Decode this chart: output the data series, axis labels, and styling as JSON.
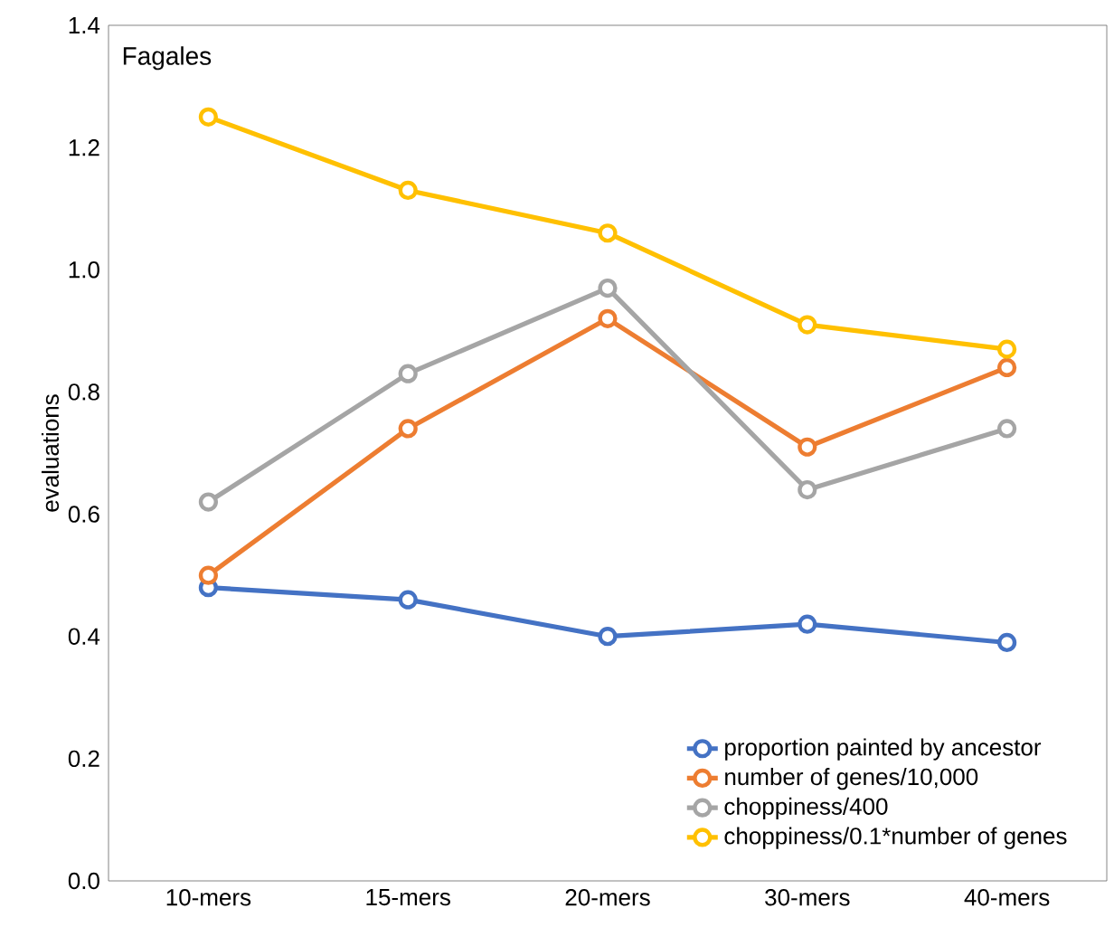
{
  "chart_data": {
    "type": "line",
    "title": "Fagales",
    "ylabel": "evaluations",
    "categories": [
      "10-mers",
      "15-mers",
      "20-mers",
      "30-mers",
      "40-mers"
    ],
    "series": [
      {
        "name": "proportion painted by ancestor",
        "color": "#4472c4",
        "values": [
          0.48,
          0.46,
          0.4,
          0.42,
          0.39
        ]
      },
      {
        "name": "number of genes/10,000",
        "color": "#ed7d31",
        "values": [
          0.5,
          0.74,
          0.92,
          0.71,
          0.84
        ]
      },
      {
        "name": "choppiness/400",
        "color": "#a5a5a5",
        "values": [
          0.62,
          0.83,
          0.97,
          0.64,
          0.74
        ]
      },
      {
        "name": "choppiness/0.1*number of genes",
        "color": "#ffc000",
        "values": [
          1.25,
          1.13,
          1.06,
          0.91,
          0.87
        ]
      }
    ],
    "ylim": [
      0,
      1.4
    ],
    "yticks": [
      {
        "value": 0,
        "label": "0.0"
      },
      0.2,
      0.4,
      0.6,
      0.8,
      {
        "value": 1,
        "label": "1.0"
      },
      1.2,
      1.4
    ],
    "grid": false,
    "legend": "bottom right",
    "marker": "circle",
    "line_style": "solid"
  }
}
